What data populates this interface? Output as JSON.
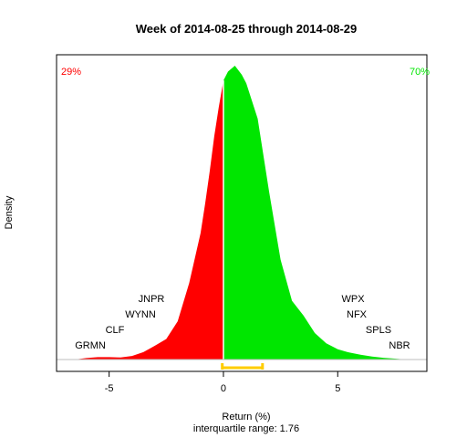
{
  "chart_data": {
    "type": "area",
    "title": "Week of 2014-08-25 through 2014-08-29",
    "xlabel": "Return (%)",
    "ylabel": "Density",
    "subtitle": "interquartile range: 1.76",
    "xlim": [
      -7.3,
      8.9
    ],
    "x_ticks": [
      -5,
      0,
      5
    ],
    "x_tick_labels": [
      "-5",
      "0",
      "5"
    ],
    "negative_share": {
      "label": "29%",
      "color": "#ff0000"
    },
    "positive_share": {
      "label": "70%",
      "color": "#00e600"
    },
    "colors": {
      "negative_fill": "#ff0000",
      "positive_fill": "#00e600",
      "iqr_bar": "#ffcc00",
      "baseline": "#bebebe"
    },
    "iqr": {
      "q1": -0.05,
      "q3": 1.71
    },
    "density": {
      "x": [
        -6.5,
        -6.0,
        -5.5,
        -5.0,
        -4.5,
        -4.0,
        -3.5,
        -3.0,
        -2.5,
        -2.0,
        -1.5,
        -1.0,
        -0.8,
        -0.6,
        -0.4,
        -0.2,
        0.0,
        0.2,
        0.5,
        0.8,
        1.0,
        1.5,
        2.0,
        2.5,
        3.0,
        3.5,
        4.0,
        4.5,
        5.0,
        5.5,
        6.0,
        6.5,
        7.0,
        7.5,
        8.0
      ],
      "y": [
        0.0,
        0.005,
        0.008,
        0.008,
        0.007,
        0.012,
        0.025,
        0.047,
        0.07,
        0.13,
        0.26,
        0.43,
        0.53,
        0.64,
        0.76,
        0.86,
        0.95,
        0.98,
        1.0,
        0.97,
        0.94,
        0.82,
        0.57,
        0.34,
        0.2,
        0.15,
        0.09,
        0.055,
        0.035,
        0.024,
        0.016,
        0.01,
        0.006,
        0.003,
        0.0
      ]
    },
    "annotations": {
      "left": [
        "JNPR",
        "WYNN",
        "CLF",
        "GRMN"
      ],
      "right": [
        "WPX",
        "NFX",
        "SPLS",
        "NBR"
      ]
    }
  }
}
